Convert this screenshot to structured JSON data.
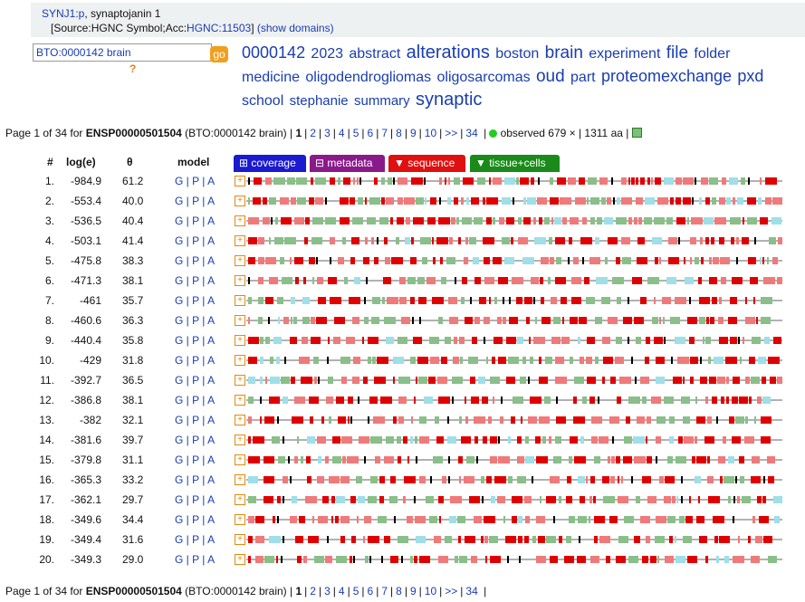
{
  "gene": {
    "symbol_link": "SYNJ1:p",
    "description": ", synaptojanin 1",
    "source_prefix": "[Source:HGNC Symbol;Acc:",
    "source_link": "HGNC:11503",
    "source_suffix": "]",
    "show_domains": "(show domains)"
  },
  "search": {
    "value": "BTO:0000142 brain",
    "go_label": "go",
    "help": "?"
  },
  "tags": [
    {
      "text": "0000142",
      "size": 18
    },
    {
      "text": "2023",
      "size": 16
    },
    {
      "text": "abstract",
      "size": 16
    },
    {
      "text": "alterations",
      "size": 20
    },
    {
      "text": "boston",
      "size": 16
    },
    {
      "text": "brain",
      "size": 19
    },
    {
      "text": "experiment",
      "size": 16
    },
    {
      "text": "file",
      "size": 19
    },
    {
      "text": "folder",
      "size": 16
    },
    {
      "text": "medicine",
      "size": 16
    },
    {
      "text": "oligodendrogliomas",
      "size": 16
    },
    {
      "text": "oligosarcomas",
      "size": 16
    },
    {
      "text": "oud",
      "size": 19
    },
    {
      "text": "part",
      "size": 16
    },
    {
      "text": "proteomexchange",
      "size": 18
    },
    {
      "text": "pxd",
      "size": 18
    },
    {
      "text": "school",
      "size": 16
    },
    {
      "text": "stephanie",
      "size": 15
    },
    {
      "text": "summary",
      "size": 15
    },
    {
      "text": "synaptic",
      "size": 20
    }
  ],
  "pager": {
    "prefix": "Page 1 of 34 for ",
    "protein": "ENSP00000501504",
    "context": " (BTO:0000142 brain) |",
    "current": "1",
    "pages": [
      "2",
      "3",
      "4",
      "5",
      "6",
      "7",
      "8",
      "9",
      "10",
      ">>",
      "34"
    ],
    "observed": "observed 679 × | 1311 aa |"
  },
  "table": {
    "col_num": "#",
    "col_log": "log(e)",
    "col_theta": "θ",
    "col_model": "model",
    "buttons": {
      "coverage": "⊞ coverage",
      "metadata": "⊟ metadata",
      "sequence": "▼ sequence",
      "tissue": "▼ tissue+cells"
    },
    "colors": {
      "coverage": "#1a1ad0",
      "metadata": "#8a1a8a",
      "sequence": "#e01010",
      "tissue": "#1a8a1a"
    },
    "model_links": [
      "G",
      "P",
      "A"
    ],
    "rows": [
      {
        "n": "1.",
        "log": "-984.9",
        "theta": "61.2"
      },
      {
        "n": "2.",
        "log": "-553.4",
        "theta": "40.0"
      },
      {
        "n": "3.",
        "log": "-536.5",
        "theta": "40.4"
      },
      {
        "n": "4.",
        "log": "-503.1",
        "theta": "41.4"
      },
      {
        "n": "5.",
        "log": "-475.8",
        "theta": "38.3"
      },
      {
        "n": "6.",
        "log": "-471.3",
        "theta": "38.1"
      },
      {
        "n": "7.",
        "log": "-461",
        "theta": "35.7"
      },
      {
        "n": "8.",
        "log": "-460.6",
        "theta": "36.3"
      },
      {
        "n": "9.",
        "log": "-440.4",
        "theta": "35.8"
      },
      {
        "n": "10.",
        "log": "-429",
        "theta": "31.8"
      },
      {
        "n": "11.",
        "log": "-392.7",
        "theta": "36.5"
      },
      {
        "n": "12.",
        "log": "-386.8",
        "theta": "38.1"
      },
      {
        "n": "13.",
        "log": "-382",
        "theta": "32.1"
      },
      {
        "n": "14.",
        "log": "-381.6",
        "theta": "39.7"
      },
      {
        "n": "15.",
        "log": "-379.8",
        "theta": "31.1"
      },
      {
        "n": "16.",
        "log": "-365.3",
        "theta": "33.2"
      },
      {
        "n": "17.",
        "log": "-362.1",
        "theta": "29.7"
      },
      {
        "n": "18.",
        "log": "-349.6",
        "theta": "34.4"
      },
      {
        "n": "19.",
        "log": "-349.4",
        "theta": "31.6"
      },
      {
        "n": "20.",
        "log": "-349.3",
        "theta": "29.0"
      }
    ],
    "segment_colors": [
      "#e00000",
      "#f07a7a",
      "#8abf8a",
      "#9fdfe8",
      "#000000"
    ]
  }
}
